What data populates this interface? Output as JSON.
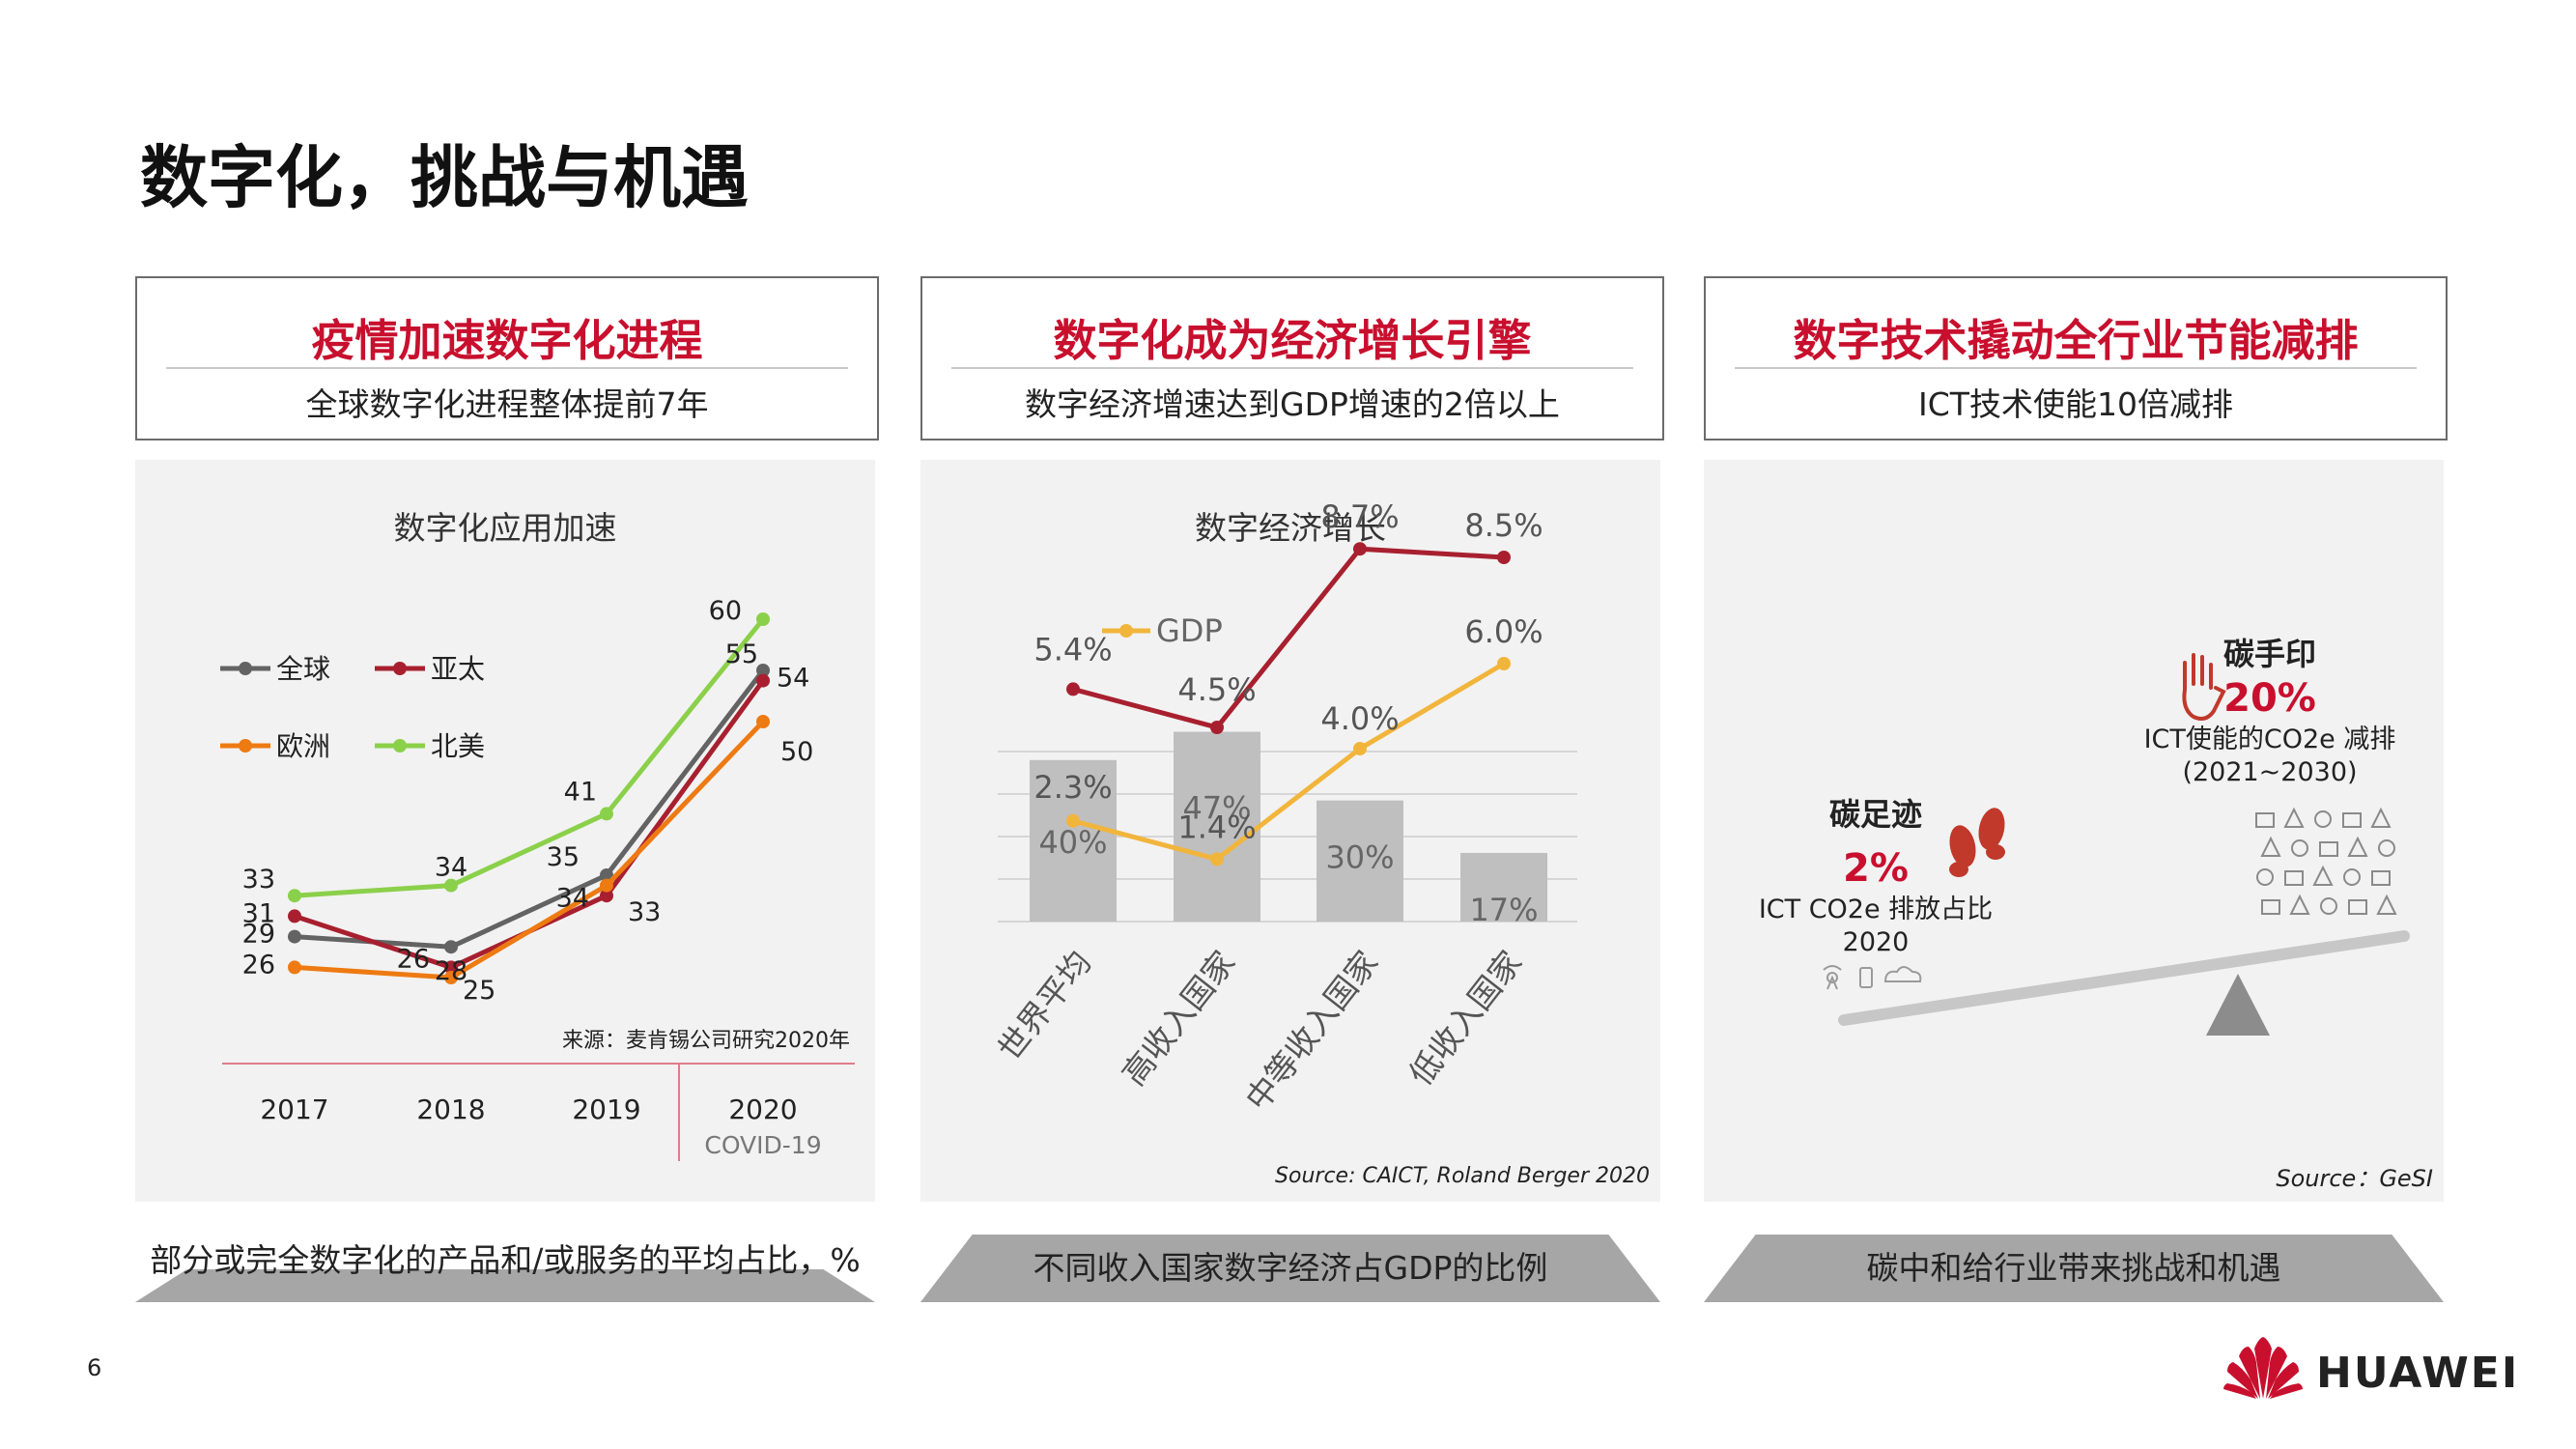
{
  "page": {
    "title": "数字化，挑战与机遇",
    "page_number": "6",
    "brand": "HUAWEI",
    "brand_color": "#c8102e"
  },
  "cards": [
    {
      "heading": "疫情加速数字化进程",
      "subheading": "全球数字化进程整体提前7年",
      "footer": "部分或完全数字化的产品和/或服务的平均占比，%"
    },
    {
      "heading": "数字化成为经济增长引擎",
      "subheading": "数字经济增速达到GDP增速的2倍以上",
      "footer": "不同收入国家数字经济占GDP的比例"
    },
    {
      "heading": "数字技术撬动全行业节能减排",
      "subheading": "ICT技术使能10倍减排",
      "footer": "碳中和给行业带来挑战和机遇"
    }
  ],
  "chart1": {
    "title": "数字化应用加速",
    "source": "来源：麦肯锡公司研究2020年",
    "annotation": "COVID-19"
  },
  "chart2": {
    "title": "数字经济增长",
    "source": "Source:  CAICT, Roland Berger 2020"
  },
  "panel3": {
    "footprint_label": "碳足迹",
    "footprint_value": "2%",
    "footprint_desc": "ICT CO2e 排放占比",
    "footprint_year": "2020",
    "handprint_label": "碳手印",
    "handprint_value": "20%",
    "handprint_desc": "ICT使能的CO2e 减排",
    "handprint_years": "(2021~2030)",
    "source": "Source：GeSI",
    "icons": [
      "footprint-icon",
      "hand-icon",
      "industry-icons",
      "ict-device-icons",
      "balance-scale-icon"
    ]
  },
  "chart_data": [
    {
      "type": "line",
      "title": "数字化应用加速",
      "x": [
        "2017",
        "2018",
        "2019",
        "2020"
      ],
      "series": [
        {
          "name": "全球",
          "color": "#636363",
          "values": [
            29,
            28,
            35,
            55
          ]
        },
        {
          "name": "亚太",
          "color": "#a8202f",
          "values": [
            31,
            26,
            33,
            54
          ]
        },
        {
          "name": "欧洲",
          "color": "#ee7a12",
          "values": [
            26,
            25,
            34,
            50
          ]
        },
        {
          "name": "北美",
          "color": "#8bd04a",
          "values": [
            33,
            34,
            41,
            60
          ]
        }
      ],
      "legend": "top-left",
      "annotation": "COVID-19"
    },
    {
      "type": "bar",
      "title": "数字经济增长",
      "categories": [
        "世界平均",
        "高收入国家",
        "中等收入国家",
        "低收入国家"
      ],
      "bars": {
        "values": [
          40,
          47,
          30,
          17
        ],
        "labels": [
          "40%",
          "47%",
          "30%",
          "17%"
        ],
        "color": "#bfbfbf"
      },
      "lines": [
        {
          "color": "#a8202f",
          "values": [
            5.4,
            4.5,
            8.7,
            8.5
          ],
          "labels": [
            "5.4%",
            "4.5%",
            "8.7%",
            "8.5%"
          ]
        },
        {
          "name": "GDP",
          "color": "#f2b53c",
          "values": [
            2.3,
            1.4,
            4.0,
            6.0
          ],
          "labels": [
            "2.3%",
            "1.4%",
            "4.0%",
            "6.0%"
          ]
        }
      ]
    }
  ]
}
